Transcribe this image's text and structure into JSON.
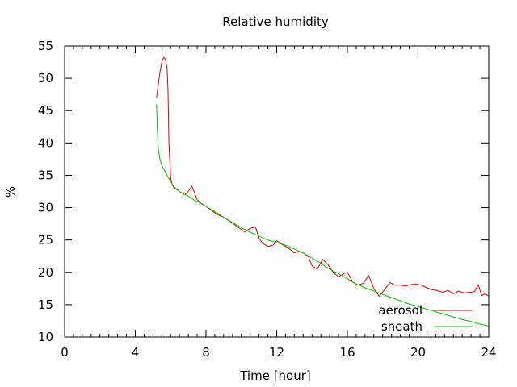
{
  "chart_data": {
    "type": "line",
    "title": "Relative humidity",
    "xlabel": "Time [hour]",
    "ylabel": "%",
    "xlim": [
      0,
      24
    ],
    "ylim": [
      10,
      55
    ],
    "xticks": [
      0,
      4,
      8,
      12,
      16,
      20,
      24
    ],
    "yticks": [
      10,
      15,
      20,
      25,
      30,
      35,
      40,
      45,
      50,
      55
    ],
    "grid": false,
    "legend_position": "bottom-right",
    "series": [
      {
        "name": "aerosol",
        "color": "#e00000",
        "x": [
          5.2,
          5.3,
          5.4,
          5.5,
          5.6,
          5.7,
          5.8,
          5.85,
          5.9,
          6.0,
          6.1,
          6.2,
          6.4,
          6.6,
          6.8,
          7.0,
          7.2,
          7.35,
          7.5,
          7.7,
          8.0,
          8.3,
          8.6,
          9.0,
          9.4,
          9.8,
          10.2,
          10.5,
          10.8,
          11.0,
          11.2,
          11.5,
          11.8,
          12.0,
          12.2,
          12.5,
          12.8,
          13.0,
          13.2,
          13.5,
          13.8,
          14.0,
          14.3,
          14.6,
          14.9,
          15.2,
          15.5,
          15.8,
          16.0,
          16.3,
          16.6,
          16.9,
          17.2,
          17.5,
          17.8,
          18.1,
          18.4,
          18.7,
          19.0,
          19.3,
          19.6,
          19.9,
          20.2,
          20.5,
          20.8,
          21.1,
          21.4,
          21.7,
          22.0,
          22.3,
          22.6,
          22.9,
          23.2,
          23.4,
          23.6,
          23.8,
          24.0
        ],
        "values": [
          47,
          49,
          51,
          52.5,
          53.2,
          53.0,
          51.5,
          48,
          40,
          34.5,
          33.5,
          33.0,
          32.7,
          32.3,
          32.0,
          32.5,
          33.3,
          32.3,
          31.2,
          30.7,
          30.2,
          29.6,
          29.0,
          28.5,
          27.8,
          27.0,
          26.2,
          26.8,
          27.0,
          25.3,
          24.5,
          24.0,
          24.2,
          24.9,
          24.5,
          24.0,
          23.5,
          23.0,
          23.2,
          23.0,
          22.4,
          21.0,
          20.5,
          22.0,
          21.2,
          20.0,
          19.3,
          19.8,
          20.0,
          18.5,
          18.0,
          18.3,
          19.5,
          17.5,
          16.3,
          17.3,
          18.4,
          18.0,
          18.0,
          17.9,
          18.1,
          18.2,
          18.0,
          17.6,
          17.3,
          17.2,
          16.9,
          17.2,
          16.7,
          17.1,
          16.8,
          16.9,
          17.0,
          18.1,
          16.4,
          16.7,
          16.3
        ]
      },
      {
        "name": "sheath",
        "color": "#00c000",
        "x": [
          5.2,
          5.25,
          5.3,
          5.4,
          5.5,
          5.6,
          5.8,
          6.0,
          6.2,
          6.5,
          6.8,
          7.0,
          7.3,
          7.6,
          8.0,
          8.5,
          9.0,
          9.5,
          10.0,
          10.5,
          11.0,
          11.5,
          12.0,
          12.5,
          13.0,
          13.5,
          14.0,
          14.5,
          15.0,
          15.5,
          16.0,
          16.5,
          17.0,
          17.5,
          18.0,
          18.5,
          19.0,
          19.5,
          20.0,
          20.5,
          21.0,
          21.5,
          22.0,
          22.5,
          23.0,
          23.5,
          24.0
        ],
        "values": [
          46,
          42,
          39,
          37.5,
          36.5,
          36,
          35,
          34,
          33.2,
          32.5,
          32.0,
          31.8,
          31.2,
          30.8,
          30.2,
          29.4,
          28.5,
          27.7,
          26.9,
          26.2,
          25.6,
          25.0,
          24.6,
          24.2,
          23.6,
          23.0,
          22.2,
          21.4,
          20.5,
          19.8,
          19.0,
          18.2,
          17.6,
          17.1,
          16.6,
          16.1,
          15.6,
          15.1,
          14.7,
          14.3,
          13.9,
          13.5,
          13.1,
          12.7,
          12.4,
          12.0,
          11.7
        ]
      }
    ]
  }
}
